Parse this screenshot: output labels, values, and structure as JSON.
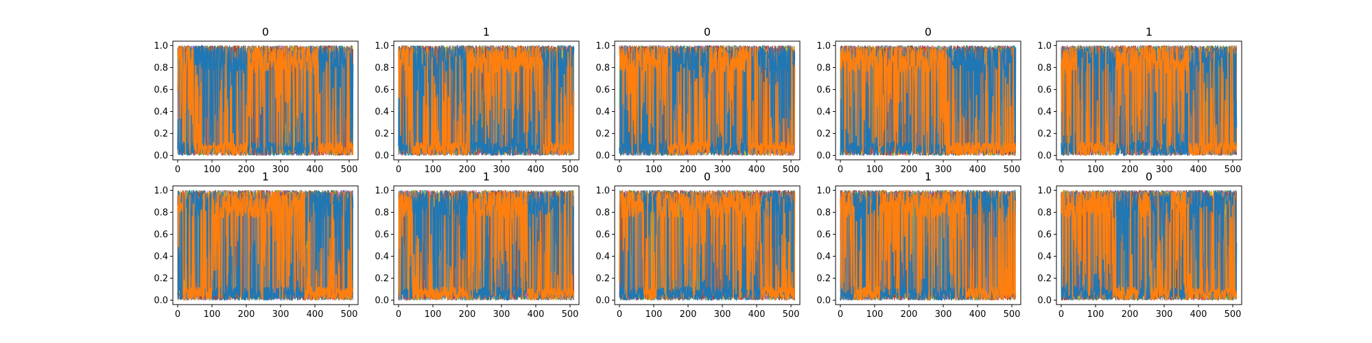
{
  "chart_data": {
    "type": "line",
    "layout": "2 rows x 5 columns of subplots",
    "xlim": [
      -14,
      526
    ],
    "ylim": [
      -0.04,
      1.04
    ],
    "xticks": [
      0,
      100,
      200,
      300,
      400,
      500
    ],
    "xtick_labels": [
      "0",
      "100",
      "200",
      "300",
      "400",
      "500"
    ],
    "yticks": [
      0.0,
      0.2,
      0.4,
      0.6,
      0.8,
      1.0
    ],
    "ytick_labels": [
      "0.0",
      "0.2",
      "0.4",
      "0.6",
      "0.8",
      "1.0"
    ],
    "grid": false,
    "n_points": 512,
    "colors": {
      "background_series": [
        "#1f77b4",
        "#17becf",
        "#2ca02c",
        "#9467bd",
        "#e377c2",
        "#d62728",
        "#bcbd22",
        "#8c564b",
        "#7f7f7f"
      ],
      "dominant_blue": "#1f77b4",
      "dominant_orange": "#ff7f0e"
    },
    "panels": [
      {
        "title": "0",
        "orange_segments": [
          [
            0,
            45
          ],
          [
            205,
            410
          ]
        ]
      },
      {
        "title": "1",
        "orange_segments": [
          [
            0,
            40
          ],
          [
            200,
            420
          ]
        ]
      },
      {
        "title": "0",
        "orange_segments": [
          [
            0,
            140
          ],
          [
            265,
            375
          ]
        ]
      },
      {
        "title": "0",
        "orange_segments": [
          [
            0,
            310
          ]
        ]
      },
      {
        "title": "1",
        "orange_segments": [
          [
            0,
            45
          ],
          [
            160,
            370
          ]
        ]
      },
      {
        "title": "1",
        "orange_segments": [
          [
            0,
            15
          ],
          [
            100,
            370
          ]
        ]
      },
      {
        "title": "1",
        "orange_segments": [
          [
            0,
            40
          ],
          [
            205,
            375
          ]
        ]
      },
      {
        "title": "0",
        "orange_segments": [
          [
            0,
            70
          ],
          [
            110,
            410
          ]
        ]
      },
      {
        "title": "1",
        "orange_segments": [
          [
            0,
            40
          ],
          [
            115,
            365
          ]
        ]
      },
      {
        "title": "0",
        "orange_segments": [
          [
            0,
            150
          ],
          [
            225,
            260
          ],
          [
            320,
            360
          ]
        ]
      }
    ]
  }
}
